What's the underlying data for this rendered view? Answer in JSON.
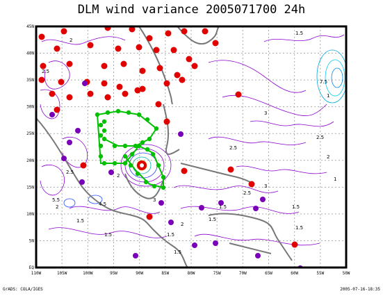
{
  "title": "DLM wind variance 2005071700 24h",
  "footer": {
    "left": "GrADS: COLA/IGES",
    "right": "2005-07-16-18:35"
  },
  "axes": {
    "lat_labels": [
      "EQ",
      "5N",
      "10N",
      "15N",
      "20N",
      "25N",
      "30N",
      "35N",
      "40N",
      "45N"
    ],
    "lon_labels": [
      "110W",
      "105W",
      "100W",
      "95W",
      "90W",
      "85W",
      "80W",
      "75W",
      "70W",
      "65W",
      "60W",
      "55W",
      "50W"
    ]
  },
  "contour_labels": [
    "2.5",
    "2",
    "1.5",
    "1",
    "3",
    "5.5",
    "4.5",
    "7.5",
    "3.5"
  ],
  "colors": {
    "frame": "#000000",
    "grid": "#aaaaaa",
    "contour": "#8a00d0",
    "contour_high": "#00aadd",
    "coast": "#777777",
    "obs_red": "#e00000",
    "obs_purple": "#7a00b8",
    "track_green": "#00c000"
  },
  "legend_note": ""
}
